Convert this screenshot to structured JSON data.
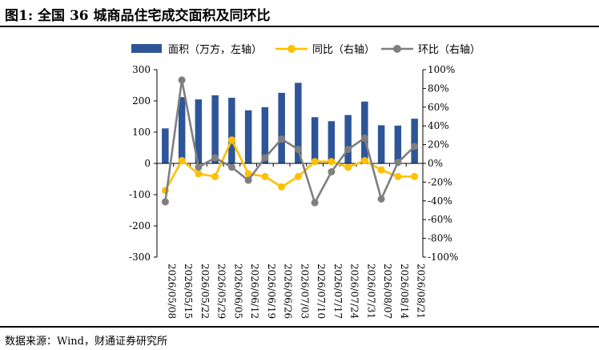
{
  "title": "图1: 全国 36 城商品住宅成交面积及同环比",
  "source": "数据来源：Wind，财通证券研究所",
  "colors": {
    "bar": "#2e5597",
    "yoy": "#ffc000",
    "mom": "#7f7f7f",
    "axis": "#000000"
  },
  "chart_data": {
    "type": "bar",
    "categories": [
      "2026/05/08",
      "2026/05/15",
      "2026/05/22",
      "2026/05/29",
      "2026/06/05",
      "2026/06/12",
      "2026/06/19",
      "2026/06/26",
      "2026/07/03",
      "2026/07/10",
      "2026/07/17",
      "2026/07/24",
      "2026/07/31",
      "2026/08/07",
      "2026/08/14",
      "2026/08/21"
    ],
    "series": [
      {
        "name": "面积（万方，左轴）",
        "type": "bar",
        "axis": "left",
        "values": [
          112,
          212,
          205,
          218,
          210,
          170,
          180,
          226,
          258,
          148,
          135,
          155,
          198,
          122,
          121,
          143
        ]
      },
      {
        "name": "同比（右轴）",
        "type": "line",
        "axis": "right",
        "values": [
          -29,
          3,
          -11,
          -14,
          25,
          -11,
          -14,
          -25,
          -14,
          2,
          2,
          -4,
          3,
          -7,
          -14,
          -14
        ]
      },
      {
        "name": "环比（右轴）",
        "type": "line",
        "axis": "right",
        "values": [
          -41,
          89,
          -4,
          6,
          -4,
          -18,
          6,
          26,
          15,
          -42,
          -9,
          15,
          27,
          -38,
          1,
          18
        ]
      }
    ],
    "yleft": {
      "lim": [
        -300,
        300
      ],
      "ticks": [
        "-300",
        "-200",
        "-100",
        "0",
        "100",
        "200",
        "300"
      ]
    },
    "yright": {
      "lim": [
        -100,
        100
      ],
      "ticks": [
        "-100%",
        "-80%",
        "-60%",
        "-40%",
        "-20%",
        "0%",
        "20%",
        "40%",
        "60%",
        "80%",
        "100%"
      ]
    },
    "legend_position": "top",
    "grid": false
  }
}
